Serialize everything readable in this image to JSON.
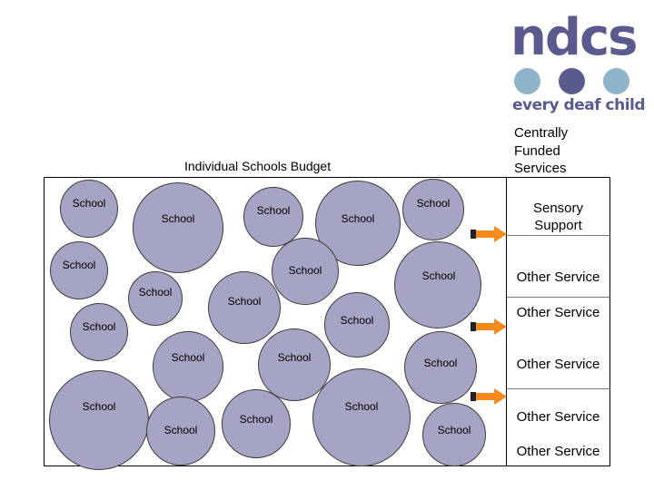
{
  "logo": {
    "wordmark": "ndcs",
    "tagline": "every deaf child",
    "colors": {
      "text": "#5b5a8f",
      "dot_light": "#8fb4c9",
      "dot_dark": "#5b5a8f"
    }
  },
  "central_title": "Centrally Funded Services",
  "isb_title": "Individual Schools Budget",
  "school_label": "School",
  "services": [
    {
      "label": "Sensory Support"
    },
    {
      "label": "Other Service"
    },
    {
      "label": "Other Service"
    },
    {
      "label": "Other Service"
    },
    {
      "label": "Other Service"
    },
    {
      "label": "Other Service"
    }
  ],
  "colors": {
    "school_fill": "#a5a4c4",
    "arrow": "#f28a1c",
    "arrow_tail": "#222222"
  }
}
